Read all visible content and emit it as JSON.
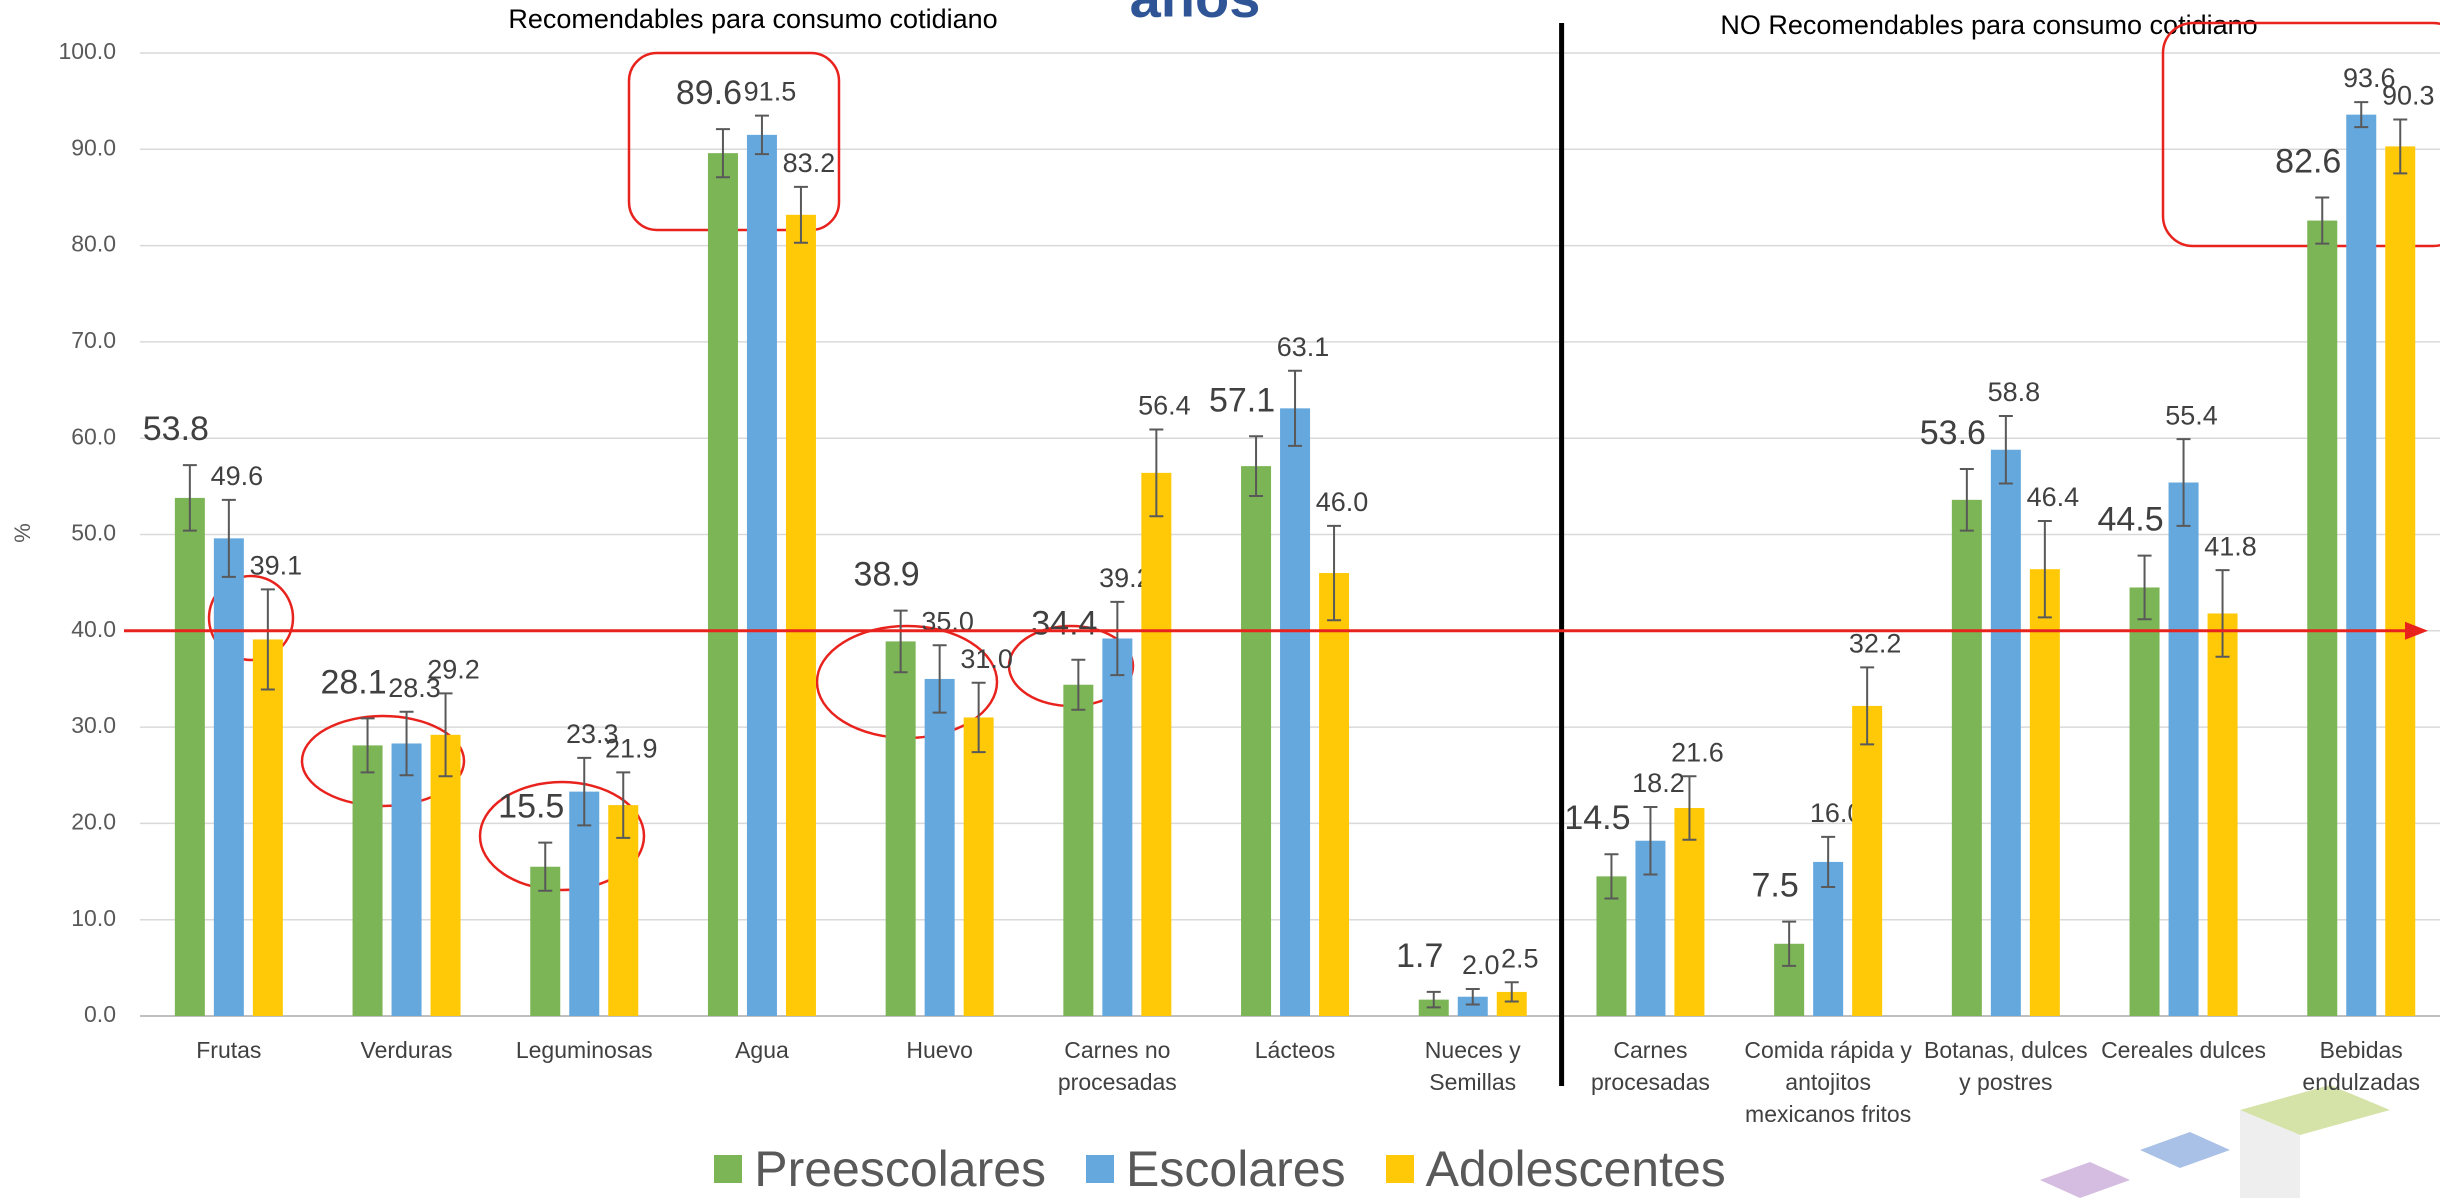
{
  "chart_data": {
    "type": "bar",
    "title": "años",
    "section_labels": [
      "Recomendables para consumo cotidiano",
      "NO Recomendables para consumo cotidiano"
    ],
    "y_label": "%",
    "categories": [
      "Frutas",
      "Verduras",
      "Leguminosas",
      "Agua",
      "Huevo",
      "Carnes no procesadas",
      "Lácteos",
      "Nueces y Semillas",
      "Carnes procesadas",
      "Comida rápida y antojitos mexicanos fritos",
      "Botanas, dulces y postres",
      "Cereales dulces",
      "Bebidas endulzadas"
    ],
    "series": [
      {
        "name": "Preescolares",
        "color": "#7cb555",
        "values": [
          53.8,
          28.1,
          15.5,
          89.6,
          38.9,
          34.4,
          57.1,
          1.7,
          14.5,
          7.5,
          53.6,
          44.5,
          82.6
        ],
        "value_labels": [
          "53.8",
          "28.1",
          "15.5",
          "89.6",
          "38.9",
          "34.4",
          "57.1",
          "1.7",
          "14.5",
          "7.5",
          "53.6",
          "44.5",
          "82.6"
        ],
        "errors": [
          3.4,
          2.8,
          2.5,
          2.5,
          3.2,
          2.6,
          3.1,
          0.8,
          2.3,
          2.3,
          3.2,
          3.3,
          2.4
        ]
      },
      {
        "name": "Escolares",
        "color": "#65a8de",
        "values": [
          49.6,
          28.3,
          23.3,
          91.5,
          35.0,
          39.2,
          63.1,
          2.0,
          18.2,
          16.0,
          58.8,
          55.4,
          93.6
        ],
        "value_labels": [
          "49.6",
          "28.3",
          "23.3",
          "91.5",
          "35.0",
          "39.2",
          "63.1",
          "2.0",
          "18.2",
          "16.0",
          "58.8",
          "55.4",
          "93.6"
        ],
        "errors": [
          4.0,
          3.3,
          3.5,
          2.0,
          3.5,
          3.8,
          3.9,
          0.8,
          3.5,
          2.6,
          3.5,
          4.5,
          1.3
        ]
      },
      {
        "name": "Adolescentes",
        "color": "#ffc908",
        "values": [
          39.1,
          29.2,
          21.9,
          83.2,
          31.0,
          56.4,
          46.0,
          2.5,
          21.6,
          32.2,
          46.4,
          41.8,
          90.3
        ],
        "value_labels": [
          "39.1",
          "29.2",
          "21.9",
          "83.2",
          "31.0",
          "56.4",
          "46.0",
          "2.5",
          "21.6",
          "32.2",
          "46.4",
          "41.8",
          "90.3"
        ],
        "errors": [
          5.2,
          4.3,
          3.4,
          2.9,
          3.6,
          4.5,
          4.9,
          1.0,
          3.3,
          4.0,
          5.0,
          4.5,
          2.8
        ]
      }
    ],
    "ylim": [
      0,
      100
    ],
    "yticks": [
      {
        "value": 0,
        "label": "0.0"
      },
      {
        "value": 10,
        "label": "10.0"
      },
      {
        "value": 20,
        "label": "20.0"
      },
      {
        "value": 30,
        "label": "30.0"
      },
      {
        "value": 40,
        "label": "40.0"
      },
      {
        "value": 50,
        "label": "50.0"
      },
      {
        "value": 60,
        "label": "60.0"
      },
      {
        "value": 70,
        "label": "70.0"
      },
      {
        "value": 80,
        "label": "80.0"
      },
      {
        "value": 90,
        "label": "90.0"
      },
      {
        "value": 100,
        "label": "100.0"
      }
    ],
    "grid": true,
    "reference_line": 40,
    "legend": "bottom"
  }
}
